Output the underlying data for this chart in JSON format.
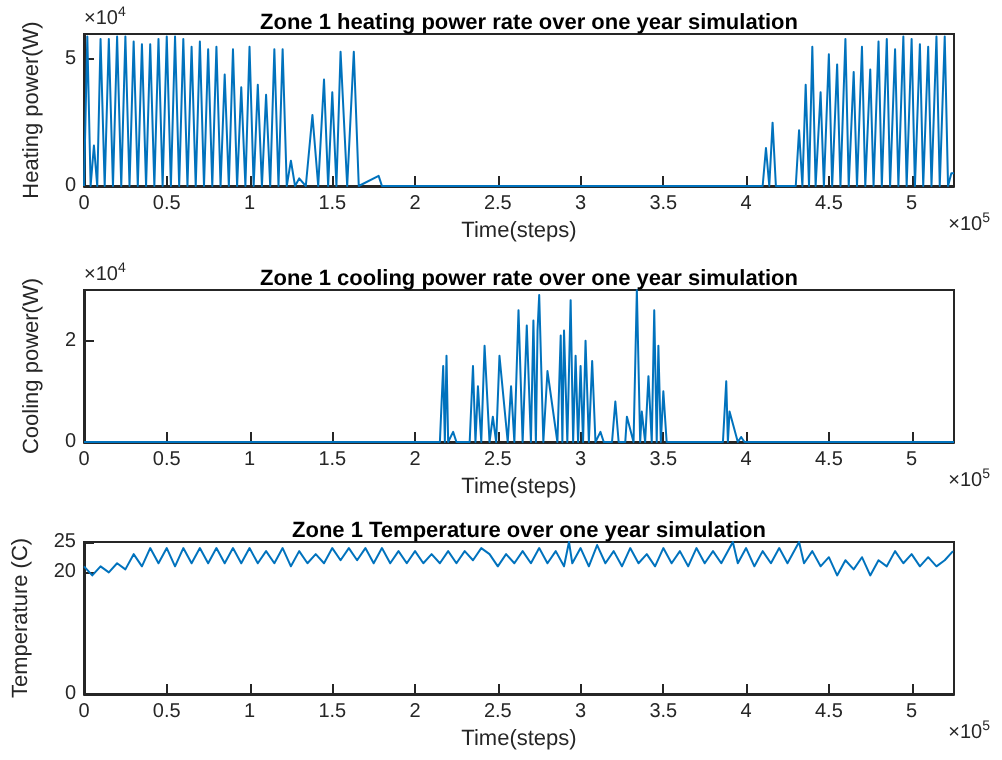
{
  "chart_data": [
    {
      "type": "line",
      "title": "Zone 1 heating power rate over one year simulation",
      "xlabel": "Time(steps)",
      "ylabel": "Heating power(W)",
      "annotations": [
        "×10$^{4}$",
        "×10$^{5}$"
      ],
      "marker": "none",
      "grid": false,
      "xlim": [
        0,
        5.256
      ],
      "ylim": [
        0,
        6
      ],
      "xticks": [
        0,
        0.5,
        1,
        1.5,
        2,
        2.5,
        3,
        3.5,
        4,
        4.5,
        5
      ],
      "yticks": [
        0,
        5
      ],
      "series": [
        {
          "color": "#0072bd",
          "x": [
            0,
            0.02,
            0.04,
            0.06,
            0.08,
            0.1,
            0.125,
            0.15,
            0.175,
            0.2,
            0.225,
            0.25,
            0.275,
            0.3,
            0.325,
            0.35,
            0.375,
            0.4,
            0.425,
            0.45,
            0.475,
            0.5,
            0.525,
            0.55,
            0.575,
            0.6,
            0.625,
            0.65,
            0.675,
            0.7,
            0.725,
            0.75,
            0.775,
            0.8,
            0.825,
            0.85,
            0.875,
            0.9,
            0.925,
            0.95,
            0.975,
            1.0,
            1.025,
            1.05,
            1.075,
            1.1,
            1.125,
            1.15,
            1.175,
            1.2,
            1.225,
            1.25,
            1.275,
            1.3,
            1.34,
            1.38,
            1.415,
            1.45,
            1.475,
            1.5,
            1.525,
            1.55,
            1.59,
            1.63,
            1.66,
            1.78,
            1.8,
            4.1,
            4.12,
            4.14,
            4.16,
            4.18,
            4.3,
            4.32,
            4.34,
            4.36,
            4.38,
            4.4,
            4.42,
            4.45,
            4.47,
            4.5,
            4.52,
            4.55,
            4.57,
            4.6,
            4.62,
            4.65,
            4.67,
            4.7,
            4.72,
            4.75,
            4.77,
            4.8,
            4.82,
            4.85,
            4.87,
            4.9,
            4.92,
            4.95,
            4.97,
            5.0,
            5.02,
            5.05,
            5.07,
            5.1,
            5.12,
            5.15,
            5.17,
            5.2,
            5.22,
            5.24,
            5.256
          ],
          "values": [
            0,
            5.9,
            0,
            1.6,
            0,
            5.8,
            0,
            5.8,
            0,
            5.9,
            0,
            5.9,
            0,
            5.7,
            0,
            5.6,
            0,
            5.6,
            0,
            5.8,
            0,
            5.9,
            0,
            5.9,
            0,
            5.8,
            0,
            5.5,
            0,
            5.7,
            0,
            5.4,
            0,
            5.5,
            0,
            4.4,
            0,
            5.4,
            0,
            3.9,
            0,
            5.5,
            0,
            4,
            0,
            3.6,
            0,
            5.4,
            0,
            5.4,
            0,
            1,
            0,
            0.3,
            0,
            2.8,
            0,
            4.2,
            0,
            3.7,
            0,
            5.3,
            0,
            5.3,
            0,
            0.4,
            0,
            0,
            1.5,
            0,
            2.5,
            0,
            0,
            2.2,
            0,
            4,
            0,
            5.5,
            0,
            3.7,
            0,
            5.2,
            0,
            4.8,
            0,
            5.8,
            0,
            4.5,
            0,
            5.5,
            0,
            4.6,
            0,
            5.7,
            0,
            5.8,
            0,
            5.4,
            0,
            5.9,
            0,
            5.8,
            0,
            5.6,
            0,
            5.5,
            0,
            5.9,
            0,
            5.9,
            0,
            0.5,
            0.5
          ]
        }
      ]
    },
    {
      "type": "line",
      "title": "Zone 1 cooling power rate over one year simulation",
      "xlabel": "Time(steps)",
      "ylabel": "Cooling power(W)",
      "annotations": [
        "×10$^{4}$",
        "×10$^{5}$"
      ],
      "marker": "none",
      "grid": false,
      "xlim": [
        0,
        5.256
      ],
      "ylim": [
        0,
        3
      ],
      "xticks": [
        0,
        0.5,
        1,
        1.5,
        2,
        2.5,
        3,
        3.5,
        4,
        4.5,
        5
      ],
      "yticks": [
        0,
        2
      ],
      "series": [
        {
          "color": "#0072bd",
          "x": [
            0,
            2.15,
            2.17,
            2.18,
            2.19,
            2.2,
            2.23,
            2.25,
            2.33,
            2.35,
            2.365,
            2.38,
            2.4,
            2.42,
            2.45,
            2.47,
            2.49,
            2.51,
            2.56,
            2.58,
            2.6,
            2.625,
            2.65,
            2.675,
            2.7,
            2.715,
            2.73,
            2.74,
            2.75,
            2.775,
            2.8,
            2.86,
            2.88,
            2.89,
            2.9,
            2.92,
            2.94,
            2.955,
            2.97,
            2.985,
            3.0,
            3.015,
            3.03,
            3.05,
            3.07,
            3.09,
            3.12,
            3.14,
            3.19,
            3.21,
            3.23,
            3.27,
            3.28,
            3.32,
            3.34,
            3.36,
            3.37,
            3.39,
            3.41,
            3.43,
            3.445,
            3.46,
            3.47,
            3.485,
            3.5,
            3.52,
            3.86,
            3.88,
            3.89,
            3.9,
            3.95,
            3.97,
            3.99,
            5.256
          ],
          "values": [
            0,
            0,
            1.5,
            0,
            1.7,
            0,
            0.2,
            0,
            0,
            1.5,
            0,
            1.1,
            0,
            1.9,
            0,
            0.5,
            0,
            1.7,
            0,
            1.1,
            0,
            2.6,
            0,
            2.3,
            0,
            2.4,
            0,
            2.2,
            2.9,
            0,
            1.4,
            0,
            2.1,
            0,
            2.2,
            0,
            2.8,
            0,
            1.7,
            0,
            1.5,
            0,
            2.0,
            0,
            1.6,
            0,
            0.2,
            0,
            0,
            0.8,
            0,
            0,
            0.5,
            0,
            3.0,
            0,
            0.6,
            0,
            1.3,
            0,
            2.6,
            0,
            1.9,
            0,
            1.0,
            0,
            0,
            1.2,
            0,
            0.6,
            0,
            0.1,
            0,
            0
          ]
        }
      ]
    },
    {
      "type": "line",
      "title": "Zone 1 Temperature over one year simulation",
      "xlabel": "Time(steps)",
      "ylabel": "Temperature (C)",
      "annotations": [
        "×10$^{5}$"
      ],
      "marker": "none",
      "grid": false,
      "xlim": [
        0,
        5.256
      ],
      "ylim": [
        0,
        25
      ],
      "xticks": [
        0,
        0.5,
        1,
        1.5,
        2,
        2.5,
        3,
        3.5,
        4,
        4.5,
        5
      ],
      "yticks": [
        0,
        20,
        25
      ],
      "series": [
        {
          "color": "#0072bd",
          "x": [
            0,
            0.05,
            0.1,
            0.15,
            0.2,
            0.25,
            0.3,
            0.35,
            0.4,
            0.45,
            0.5,
            0.55,
            0.6,
            0.65,
            0.7,
            0.75,
            0.8,
            0.85,
            0.9,
            0.95,
            1.0,
            1.05,
            1.1,
            1.15,
            1.2,
            1.25,
            1.3,
            1.35,
            1.4,
            1.45,
            1.5,
            1.55,
            1.6,
            1.65,
            1.7,
            1.75,
            1.8,
            1.85,
            1.9,
            1.95,
            2.0,
            2.05,
            2.1,
            2.15,
            2.2,
            2.25,
            2.3,
            2.35,
            2.4,
            2.45,
            2.5,
            2.55,
            2.6,
            2.65,
            2.7,
            2.75,
            2.8,
            2.85,
            2.9,
            2.93,
            2.95,
            3.0,
            3.05,
            3.1,
            3.15,
            3.2,
            3.25,
            3.3,
            3.35,
            3.4,
            3.45,
            3.5,
            3.55,
            3.6,
            3.65,
            3.7,
            3.75,
            3.8,
            3.85,
            3.92,
            3.95,
            4.0,
            4.05,
            4.1,
            4.15,
            4.2,
            4.25,
            4.32,
            4.35,
            4.4,
            4.45,
            4.5,
            4.55,
            4.6,
            4.65,
            4.7,
            4.75,
            4.8,
            4.85,
            4.9,
            4.95,
            5.0,
            5.05,
            5.1,
            5.15,
            5.2,
            5.25
          ],
          "values": [
            21,
            19.5,
            21,
            20,
            21.5,
            20.5,
            23,
            21,
            24,
            21.5,
            24,
            21,
            24,
            21.5,
            24,
            21.5,
            24,
            21.5,
            24,
            21.5,
            24,
            21.5,
            23.5,
            21.5,
            24,
            21,
            23.5,
            21.5,
            23,
            21.5,
            24,
            22,
            24,
            22,
            24,
            21.5,
            24,
            21.5,
            23.5,
            21.5,
            23.5,
            21.5,
            23,
            21.5,
            23.5,
            21.5,
            23.5,
            22,
            24,
            23,
            21,
            23,
            21.5,
            23.5,
            21.5,
            24,
            21.5,
            23.5,
            21,
            25,
            21.5,
            24,
            21,
            24.5,
            21.5,
            23.5,
            21,
            24,
            21.5,
            23,
            21,
            24,
            21.5,
            23.5,
            21,
            24,
            21.5,
            23.5,
            21.5,
            25,
            21.5,
            24,
            21,
            23.5,
            21.5,
            24,
            21.5,
            25,
            21.5,
            23.5,
            21,
            22.5,
            19.5,
            22,
            20.5,
            22.5,
            19.5,
            22,
            21,
            23.5,
            21.5,
            23,
            21,
            22.5,
            21,
            22,
            23.5
          ]
        }
      ]
    }
  ]
}
